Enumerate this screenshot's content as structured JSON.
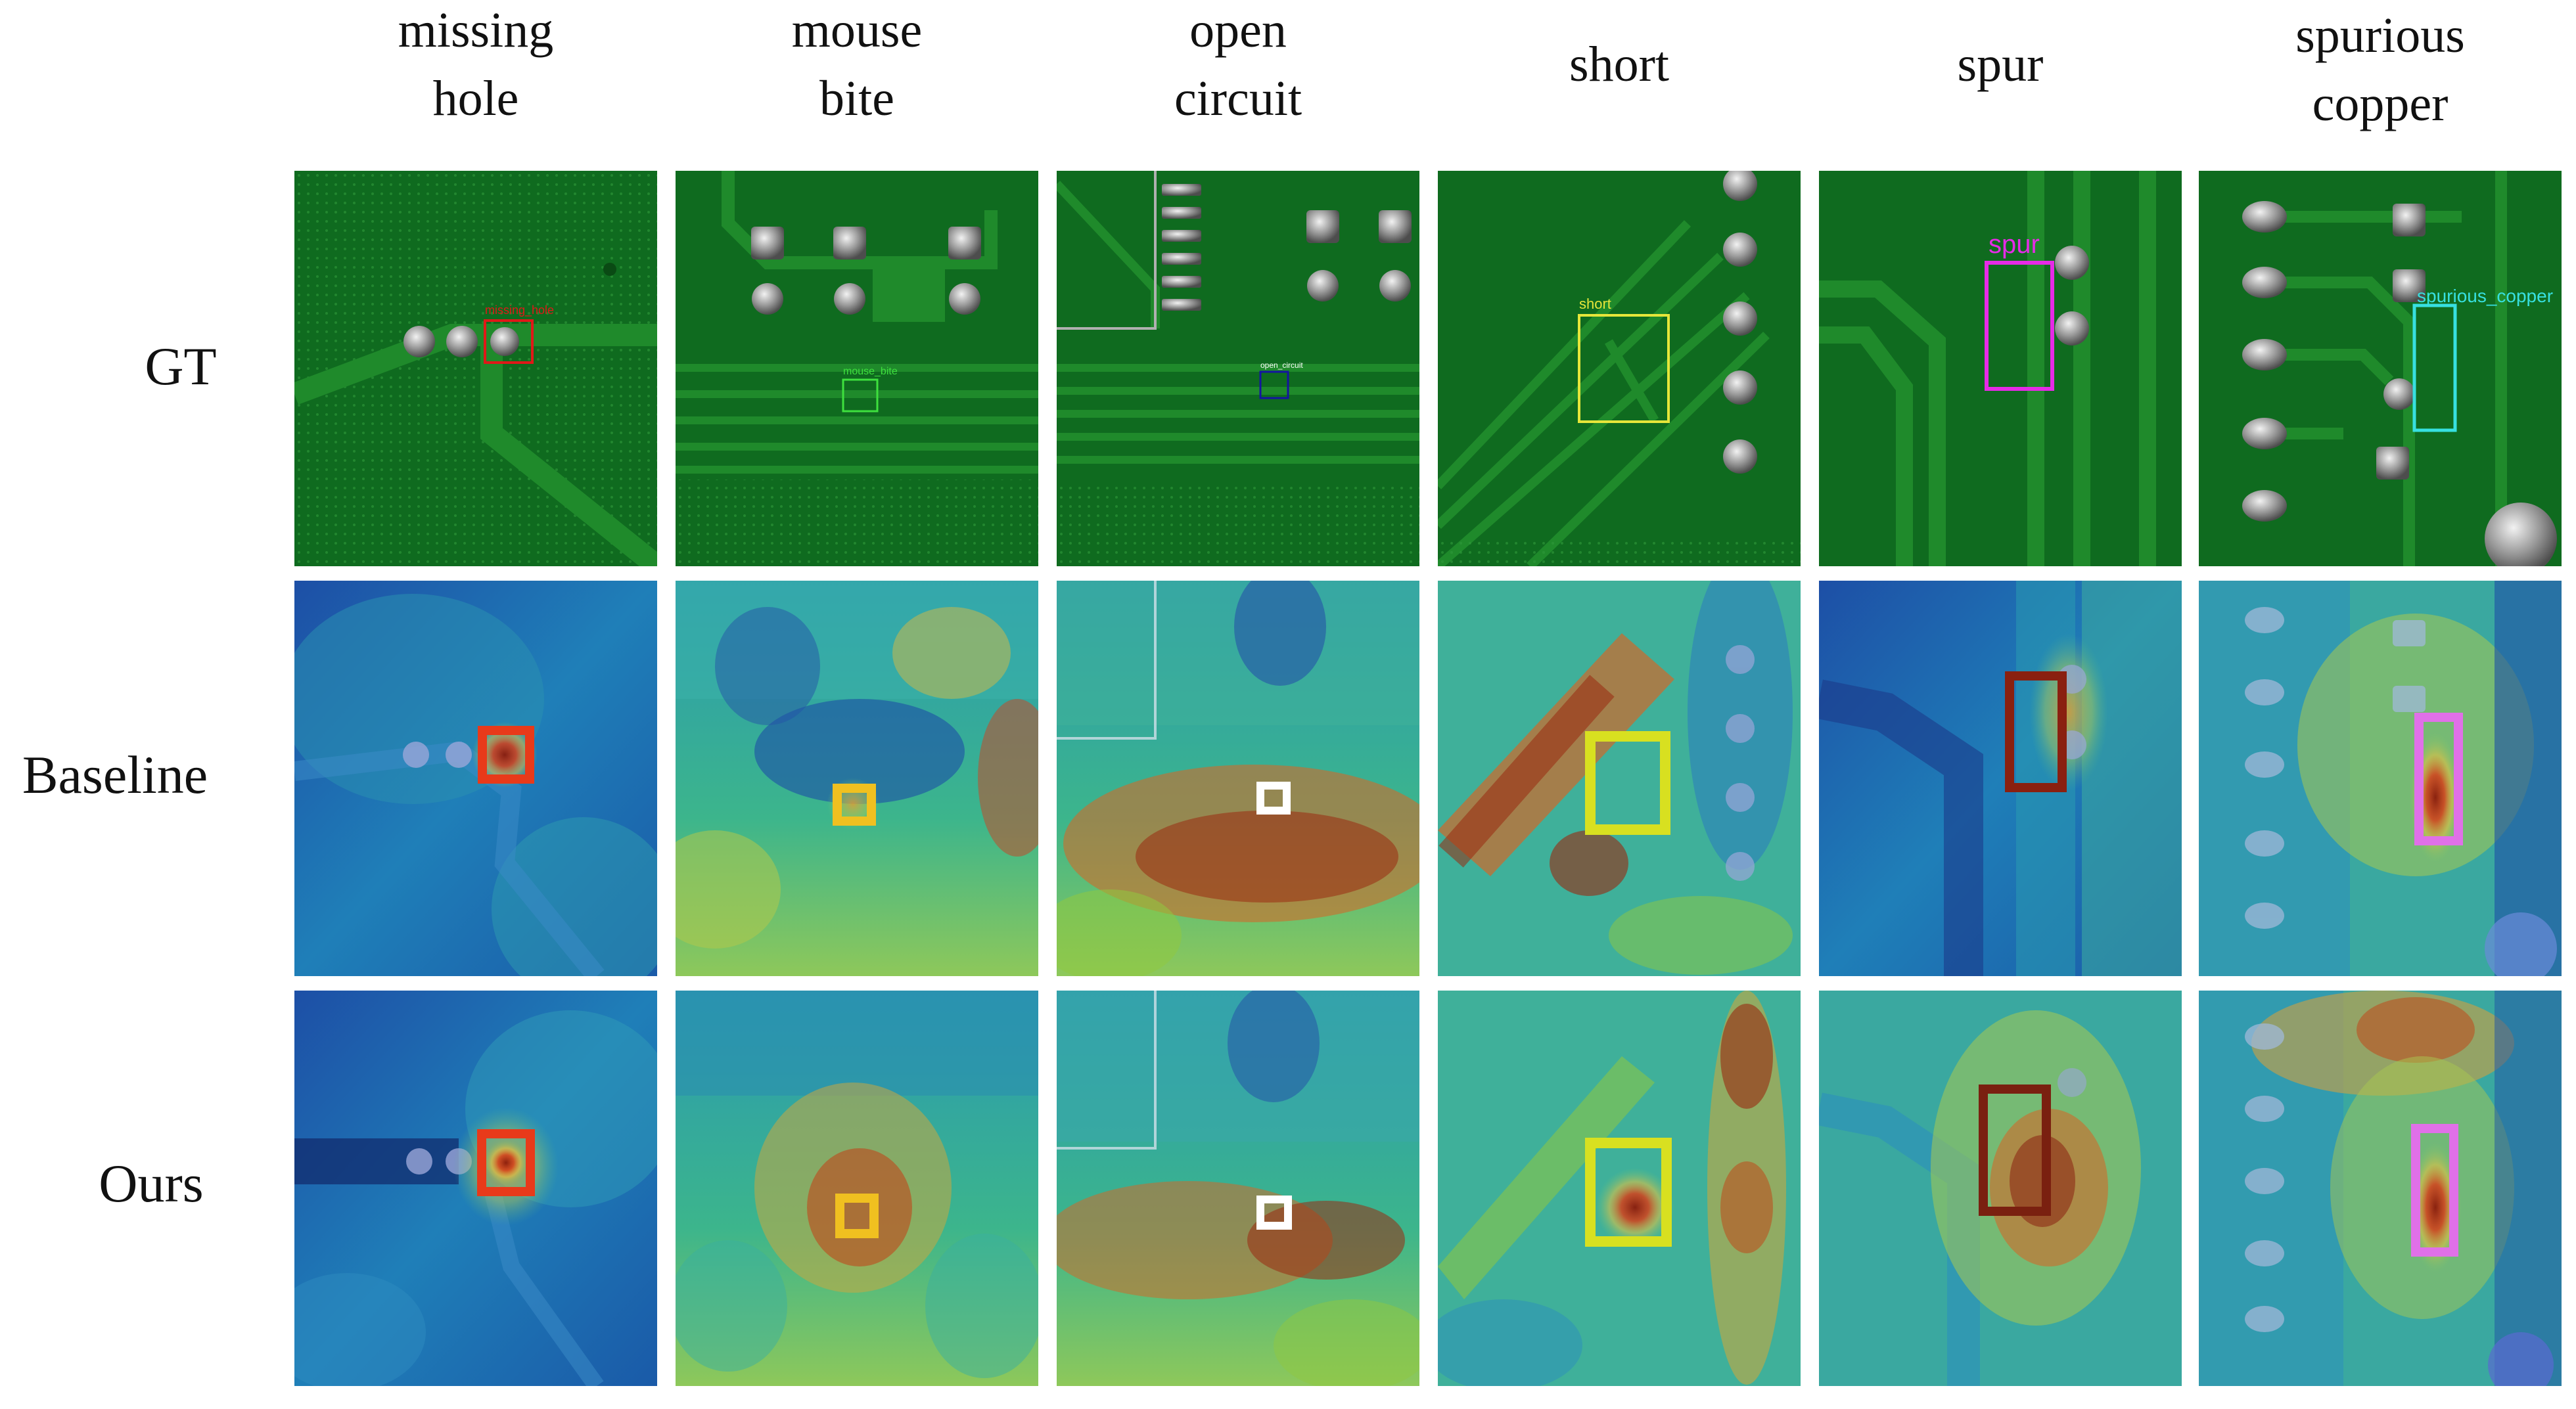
{
  "columns": [
    {
      "id": "missing-hole",
      "label": "missing\nhole"
    },
    {
      "id": "mouse-bite",
      "label": "mouse\nbite"
    },
    {
      "id": "open-circuit",
      "label": "open\ncircuit"
    },
    {
      "id": "short",
      "label": "short"
    },
    {
      "id": "spur",
      "label": "spur"
    },
    {
      "id": "spurious-copper",
      "label": "spurious\ncopper"
    }
  ],
  "rows": [
    {
      "id": "gt",
      "label": "GT"
    },
    {
      "id": "baseline",
      "label": "Baseline"
    },
    {
      "id": "ours",
      "label": "Ours"
    }
  ],
  "gt_box_labels": [
    "missing_hole",
    "mouse_bite",
    "open_circuit",
    "short",
    "spur",
    "spurious_copper"
  ],
  "colors": {
    "pcb_green": "#0f6b1f",
    "trace_green": "#1e8a2a",
    "box_missing_hole": "#e01818",
    "box_mouse_bite": "#3ee03e",
    "box_open_circuit": "#1414a0",
    "box_short": "#e6e63a",
    "box_spur": "#e62ae6",
    "box_spurious_copper": "#37e0e0"
  }
}
